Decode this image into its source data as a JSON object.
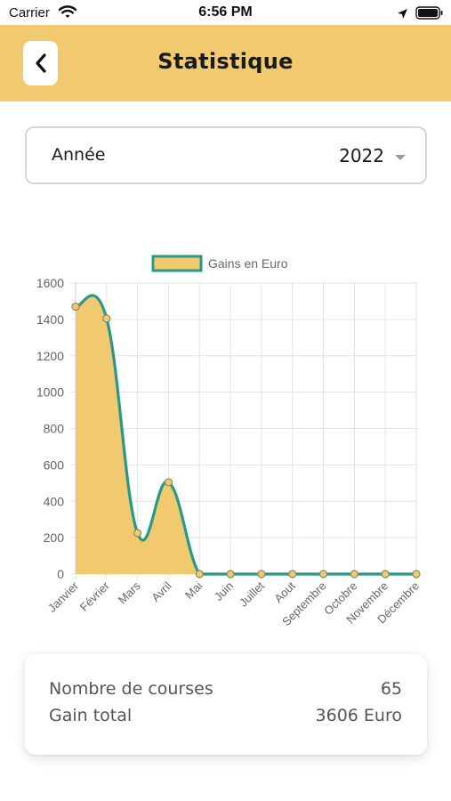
{
  "status_bar": {
    "carrier": "Carrier",
    "time": "6:56 PM",
    "icons": [
      "wifi-icon",
      "location-arrow-icon",
      "battery-icon"
    ]
  },
  "header": {
    "title": "Statistique",
    "back_icon": "chevron-left-icon",
    "background": "#f1c96f"
  },
  "year_filter": {
    "label": "Année",
    "value": "2022",
    "caret_icon": "caret-down-icon"
  },
  "chart_data": {
    "type": "area",
    "legend": [
      "Gains en Euro"
    ],
    "categories": [
      "Janvier",
      "Février",
      "Mars",
      "Avril",
      "Mai",
      "Juin",
      "Juillet",
      "Aout",
      "Septembre",
      "Octobre",
      "Novembre",
      "Décembre"
    ],
    "series": [
      {
        "name": "Gains en Euro",
        "values": [
          1470,
          1405,
          225,
          505,
          0,
          0,
          0,
          0,
          0,
          0,
          0,
          0
        ]
      }
    ],
    "ylim": [
      0,
      1600
    ],
    "yticks": [
      0,
      200,
      400,
      600,
      800,
      1000,
      1200,
      1400,
      1600
    ],
    "grid": true,
    "legend_position": "top",
    "colors": {
      "fill": "#f1c96f",
      "line": "#26998a",
      "grid": "#e3e3e3"
    }
  },
  "summary": {
    "rides_label": "Nombre de courses",
    "rides_value": "65",
    "total_label": "Gain total",
    "total_value": "3606 Euro"
  }
}
